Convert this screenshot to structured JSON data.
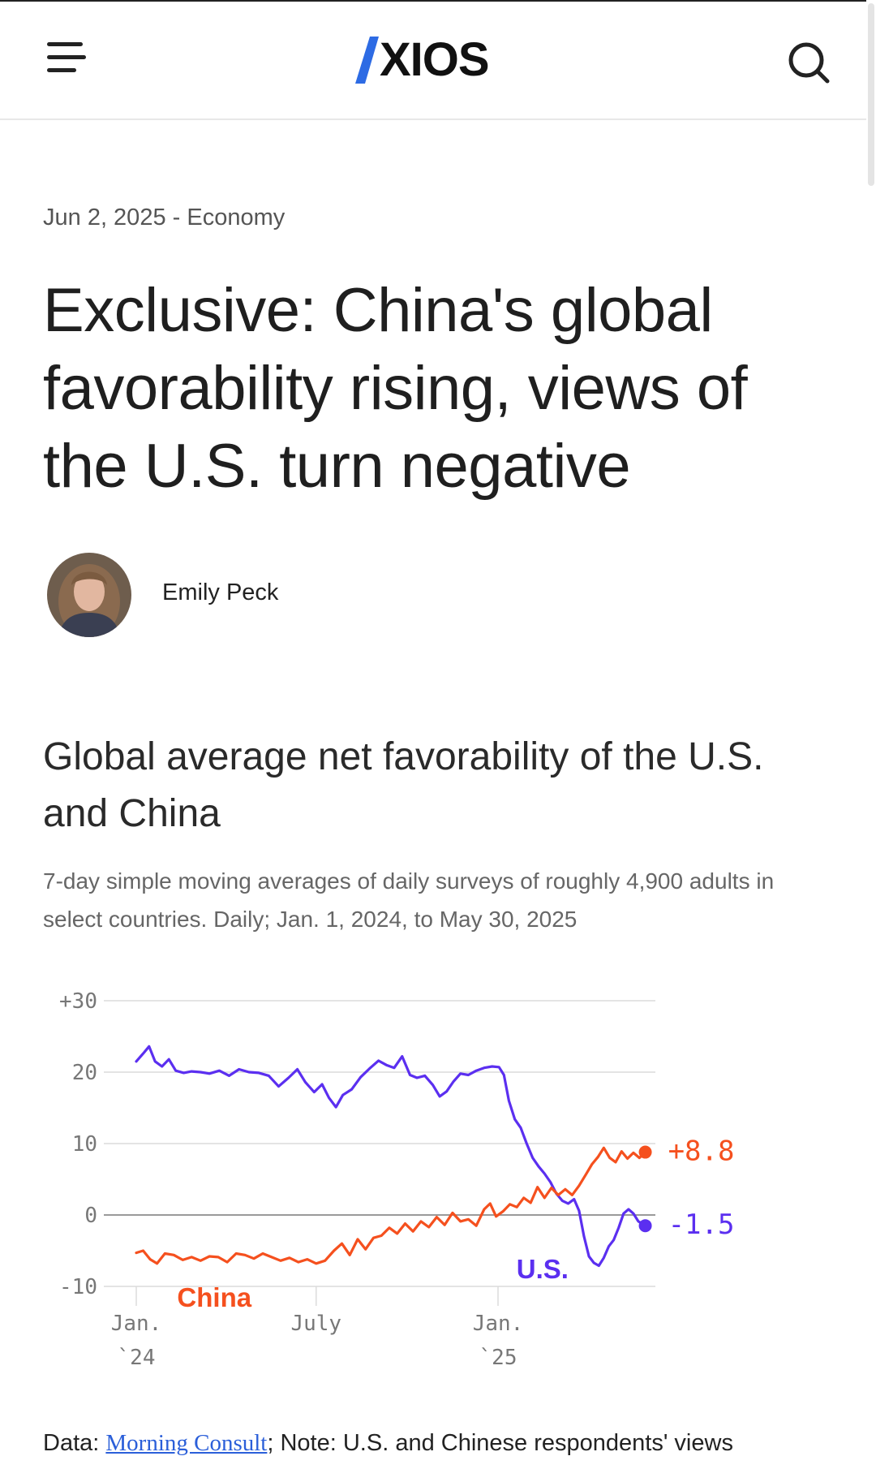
{
  "header": {
    "logo_text": "XIOS",
    "menu_icon": "hamburger-icon",
    "search_icon": "search-icon"
  },
  "article": {
    "date": "Jun 2, 2025",
    "separator": " - ",
    "section": "Economy",
    "headline": "Exclusive: China's global favorability rising, views of the U.S. turn negative",
    "author": "Emily Peck"
  },
  "chart": {
    "title": "Global average net favorability of the U.S. and China",
    "subtitle": "7-day simple moving averages of daily surveys of roughly 4,900 adults in select countries. Daily; Jan. 1, 2024, to May 30, 2025"
  },
  "source": {
    "prefix": "Data: ",
    "link": "Morning Consult",
    "suffix": "; Note: U.S. and Chinese respondents' views"
  },
  "chart_data": {
    "type": "line",
    "title": "Global average net favorability of the U.S. and China",
    "ylim": [
      -10,
      30
    ],
    "yticks": [
      {
        "value": 30,
        "label": "+30"
      },
      {
        "value": 20,
        "label": "20"
      },
      {
        "value": 10,
        "label": "10"
      },
      {
        "value": 0,
        "label": "0"
      },
      {
        "value": -10,
        "label": "-10"
      }
    ],
    "xticks": [
      {
        "date": "2024-01-01",
        "line1": "Jan.",
        "line2": "`24"
      },
      {
        "date": "2024-07-01",
        "line1": "July",
        "line2": ""
      },
      {
        "date": "2025-01-01",
        "line1": "Jan.",
        "line2": "`25"
      }
    ],
    "xlim": [
      "2024-01-01",
      "2025-05-30"
    ],
    "grid": true,
    "colors": {
      "us": "#5b2ff0",
      "china": "#f5501e",
      "grid": "#dcdcdc",
      "zero": "#9a9a9a"
    },
    "series": [
      {
        "name": "U.S.",
        "key": "us",
        "end_label": "-1.5",
        "points": [
          [
            "2024-01-01",
            21.5
          ],
          [
            "2024-01-08",
            22.6
          ],
          [
            "2024-01-14",
            23.6
          ],
          [
            "2024-01-20",
            21.5
          ],
          [
            "2024-01-27",
            20.8
          ],
          [
            "2024-02-03",
            21.8
          ],
          [
            "2024-02-10",
            20.2
          ],
          [
            "2024-02-18",
            19.9
          ],
          [
            "2024-02-26",
            20.1
          ],
          [
            "2024-03-06",
            20.0
          ],
          [
            "2024-03-15",
            19.8
          ],
          [
            "2024-03-25",
            20.2
          ],
          [
            "2024-04-04",
            19.5
          ],
          [
            "2024-04-14",
            20.4
          ],
          [
            "2024-04-24",
            20.0
          ],
          [
            "2024-05-04",
            19.9
          ],
          [
            "2024-05-14",
            19.5
          ],
          [
            "2024-05-24",
            18.0
          ],
          [
            "2024-06-03",
            19.2
          ],
          [
            "2024-06-12",
            20.4
          ],
          [
            "2024-06-20",
            18.6
          ],
          [
            "2024-06-29",
            17.2
          ],
          [
            "2024-07-07",
            18.3
          ],
          [
            "2024-07-14",
            16.4
          ],
          [
            "2024-07-21",
            15.1
          ],
          [
            "2024-07-28",
            16.8
          ],
          [
            "2024-08-06",
            17.6
          ],
          [
            "2024-08-15",
            19.3
          ],
          [
            "2024-08-24",
            20.5
          ],
          [
            "2024-09-02",
            21.6
          ],
          [
            "2024-09-10",
            21.0
          ],
          [
            "2024-09-18",
            20.6
          ],
          [
            "2024-09-26",
            22.2
          ],
          [
            "2024-10-04",
            19.6
          ],
          [
            "2024-10-11",
            19.2
          ],
          [
            "2024-10-19",
            19.5
          ],
          [
            "2024-10-27",
            18.2
          ],
          [
            "2024-11-03",
            16.6
          ],
          [
            "2024-11-10",
            17.3
          ],
          [
            "2024-11-17",
            18.7
          ],
          [
            "2024-11-24",
            19.8
          ],
          [
            "2024-12-02",
            19.6
          ],
          [
            "2024-12-10",
            20.2
          ],
          [
            "2024-12-18",
            20.6
          ],
          [
            "2024-12-26",
            20.8
          ],
          [
            "2025-01-02",
            20.7
          ],
          [
            "2025-01-07",
            19.6
          ],
          [
            "2025-01-12",
            16.0
          ],
          [
            "2025-01-18",
            13.4
          ],
          [
            "2025-01-24",
            12.2
          ],
          [
            "2025-01-30",
            10.0
          ],
          [
            "2025-02-05",
            8.0
          ],
          [
            "2025-02-11",
            6.8
          ],
          [
            "2025-02-17",
            5.8
          ],
          [
            "2025-02-23",
            4.6
          ],
          [
            "2025-03-01",
            3.0
          ],
          [
            "2025-03-07",
            2.0
          ],
          [
            "2025-03-13",
            1.6
          ],
          [
            "2025-03-19",
            2.2
          ],
          [
            "2025-03-24",
            0.6
          ],
          [
            "2025-03-29",
            -3.0
          ],
          [
            "2025-04-03",
            -5.8
          ],
          [
            "2025-04-08",
            -6.7
          ],
          [
            "2025-04-13",
            -7.1
          ],
          [
            "2025-04-18",
            -6.0
          ],
          [
            "2025-04-23",
            -4.4
          ],
          [
            "2025-04-28",
            -3.5
          ],
          [
            "2025-05-03",
            -1.8
          ],
          [
            "2025-05-08",
            0.2
          ],
          [
            "2025-05-13",
            0.8
          ],
          [
            "2025-05-18",
            0.2
          ],
          [
            "2025-05-23",
            -0.9
          ],
          [
            "2025-05-30",
            -1.5
          ]
        ]
      },
      {
        "name": "China",
        "key": "china",
        "end_label": "+8.8",
        "points": [
          [
            "2024-01-01",
            -5.3
          ],
          [
            "2024-01-08",
            -5.0
          ],
          [
            "2024-01-15",
            -6.2
          ],
          [
            "2024-01-22",
            -6.8
          ],
          [
            "2024-01-30",
            -5.4
          ],
          [
            "2024-02-08",
            -5.6
          ],
          [
            "2024-02-17",
            -6.3
          ],
          [
            "2024-02-26",
            -5.9
          ],
          [
            "2024-03-06",
            -6.4
          ],
          [
            "2024-03-15",
            -5.8
          ],
          [
            "2024-03-24",
            -5.9
          ],
          [
            "2024-04-02",
            -6.6
          ],
          [
            "2024-04-11",
            -5.4
          ],
          [
            "2024-04-20",
            -5.6
          ],
          [
            "2024-04-29",
            -6.1
          ],
          [
            "2024-05-08",
            -5.4
          ],
          [
            "2024-05-17",
            -5.9
          ],
          [
            "2024-05-26",
            -6.4
          ],
          [
            "2024-06-04",
            -6.0
          ],
          [
            "2024-06-13",
            -6.6
          ],
          [
            "2024-06-22",
            -6.2
          ],
          [
            "2024-07-01",
            -6.8
          ],
          [
            "2024-07-10",
            -6.4
          ],
          [
            "2024-07-19",
            -5.0
          ],
          [
            "2024-07-27",
            -4.0
          ],
          [
            "2024-08-04",
            -5.6
          ],
          [
            "2024-08-12",
            -3.4
          ],
          [
            "2024-08-20",
            -4.8
          ],
          [
            "2024-08-28",
            -3.2
          ],
          [
            "2024-09-05",
            -2.9
          ],
          [
            "2024-09-13",
            -1.8
          ],
          [
            "2024-09-21",
            -2.6
          ],
          [
            "2024-09-29",
            -1.2
          ],
          [
            "2024-10-07",
            -2.3
          ],
          [
            "2024-10-15",
            -0.9
          ],
          [
            "2024-10-23",
            -1.7
          ],
          [
            "2024-10-31",
            -0.3
          ],
          [
            "2024-11-08",
            -1.4
          ],
          [
            "2024-11-16",
            0.3
          ],
          [
            "2024-11-24",
            -0.9
          ],
          [
            "2024-12-02",
            -0.6
          ],
          [
            "2024-12-10",
            -1.5
          ],
          [
            "2024-12-18",
            0.8
          ],
          [
            "2024-12-24",
            1.6
          ],
          [
            "2024-12-30",
            -0.2
          ],
          [
            "2025-01-06",
            0.5
          ],
          [
            "2025-01-13",
            1.5
          ],
          [
            "2025-01-20",
            1.1
          ],
          [
            "2025-01-27",
            2.4
          ],
          [
            "2025-02-03",
            1.7
          ],
          [
            "2025-02-10",
            3.9
          ],
          [
            "2025-02-17",
            2.4
          ],
          [
            "2025-02-24",
            3.8
          ],
          [
            "2025-03-03",
            2.8
          ],
          [
            "2025-03-10",
            3.6
          ],
          [
            "2025-03-17",
            2.8
          ],
          [
            "2025-03-24",
            4.1
          ],
          [
            "2025-03-31",
            5.7
          ],
          [
            "2025-04-06",
            7.1
          ],
          [
            "2025-04-12",
            8.1
          ],
          [
            "2025-04-18",
            9.4
          ],
          [
            "2025-04-24",
            8.0
          ],
          [
            "2025-04-30",
            7.4
          ],
          [
            "2025-05-06",
            8.9
          ],
          [
            "2025-05-12",
            7.9
          ],
          [
            "2025-05-18",
            8.7
          ],
          [
            "2025-05-24",
            8.0
          ],
          [
            "2025-05-30",
            8.8
          ]
        ]
      }
    ],
    "series_labels": [
      {
        "text": "U.S.",
        "key": "us",
        "date": "2025-02-15",
        "value": -7.5
      },
      {
        "text": "China",
        "key": "china",
        "date": "2024-03-20",
        "value": -11.5
      }
    ]
  }
}
